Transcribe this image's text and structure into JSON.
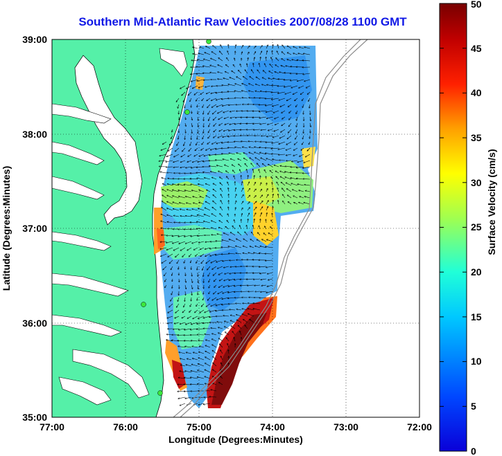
{
  "title": "Southern Mid-Atlantic Raw Velocities 2007/08/28 1100 GMT",
  "map": {
    "xlabel": "Longitude (Degrees:Minutes)",
    "ylabel": "Latitude (Degrees:Minutes)",
    "lon_ticks": [
      "77:00",
      "76:00",
      "75:00",
      "74:00",
      "73:00",
      "72:00"
    ],
    "lat_ticks": [
      "39:00",
      "38:00",
      "37:00",
      "36:00",
      "35:00"
    ],
    "land_color": "#55f0a8",
    "grid_style": "dotted"
  },
  "colorbar": {
    "label": "Surface Velocity (cm/s)",
    "ticks": [
      "0",
      "5",
      "10",
      "15",
      "20",
      "25",
      "30",
      "35",
      "40",
      "45",
      "50"
    ],
    "min": 0,
    "max": 50,
    "colormap": "jet"
  }
}
